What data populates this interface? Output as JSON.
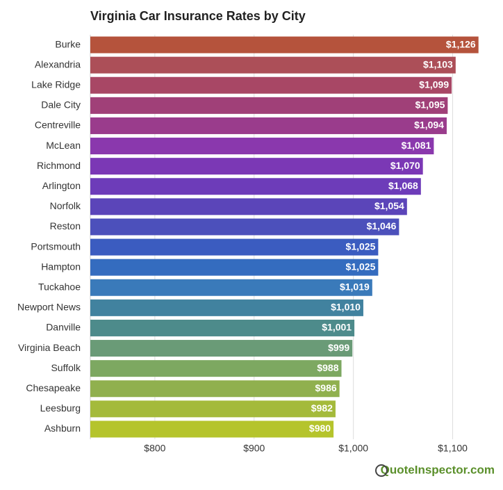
{
  "chart_data": {
    "type": "bar",
    "orientation": "horizontal",
    "title": "Virginia Car Insurance Rates by City",
    "categories": [
      "Burke",
      "Alexandria",
      "Lake Ridge",
      "Dale City",
      "Centreville",
      "McLean",
      "Richmond",
      "Arlington",
      "Norfolk",
      "Reston",
      "Portsmouth",
      "Hampton",
      "Tuckahoe",
      "Newport News",
      "Danville",
      "Virginia Beach",
      "Suffolk",
      "Chesapeake",
      "Leesburg",
      "Ashburn"
    ],
    "values": [
      1126,
      1103,
      1099,
      1095,
      1094,
      1081,
      1070,
      1068,
      1054,
      1046,
      1025,
      1025,
      1019,
      1010,
      1001,
      999,
      988,
      986,
      982,
      980
    ],
    "value_labels": [
      "$1,126",
      "$1,103",
      "$1,099",
      "$1,095",
      "$1,094",
      "$1,081",
      "$1,070",
      "$1,068",
      "$1,054",
      "$1,046",
      "$1,025",
      "$1,025",
      "$1,019",
      "$1,010",
      "$1,001",
      "$999",
      "$988",
      "$986",
      "$982",
      "$980"
    ],
    "colors": [
      "#b5533c",
      "#ac4f58",
      "#a84765",
      "#a04078",
      "#9a3c8c",
      "#8a38ad",
      "#7b38b5",
      "#6d3cb9",
      "#5b45b9",
      "#4c50bb",
      "#3b5cc0",
      "#346cbf",
      "#3a7aba",
      "#41829f",
      "#4d8b8b",
      "#6a9b77",
      "#7da861",
      "#90b04e",
      "#a4ba3b",
      "#b5c42c"
    ],
    "xlim": [
      735,
      1150
    ],
    "xticks": [
      {
        "value": 800,
        "label": "$800"
      },
      {
        "value": 900,
        "label": "$900"
      },
      {
        "value": 1000,
        "label": "$1,000"
      },
      {
        "value": 1100,
        "label": "$1,100"
      }
    ],
    "grid": true
  },
  "footer": {
    "brand": "QuoteInspector.com"
  }
}
